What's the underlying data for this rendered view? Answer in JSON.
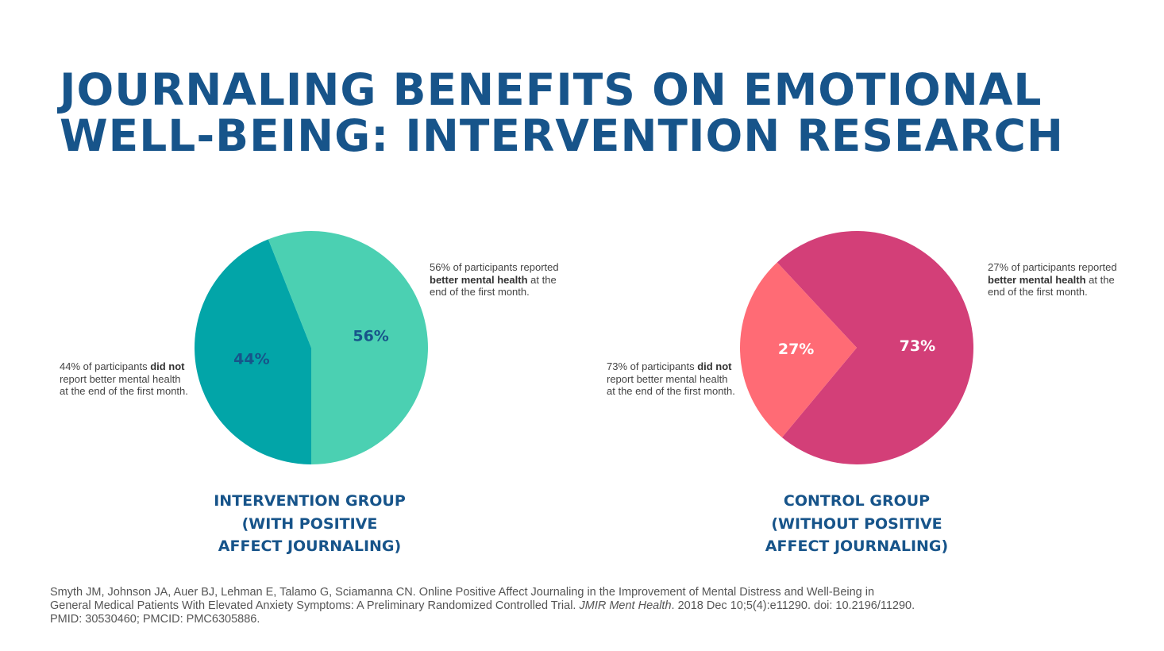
{
  "title": {
    "line1": "JOURNALING BENEFITS ON EMOTIONAL",
    "line2": "WELL-BEING: INTERVENTION RESEARCH"
  },
  "chart_data": [
    {
      "type": "pie",
      "categories": [
        "Did not report better mental health",
        "Reported better mental health"
      ],
      "values": [
        44,
        56
      ],
      "slice_labels": [
        "44%",
        "56%"
      ],
      "colors": [
        "#02a5a8",
        "#4bd0b2"
      ],
      "label_colors": [
        "#17548a",
        "#17548a"
      ],
      "title_lines": [
        "INTERVENTION GROUP",
        "(WITH POSITIVE",
        "AFFECT JOURNALING)"
      ],
      "annotations": {
        "positive": {
          "before": "56% of participants reported ",
          "bold": "better mental health",
          "after": " at the end of the first month."
        },
        "negative": {
          "before": "44% of participants ",
          "bold": "did not",
          "after": " report better mental health at the end of the first month."
        }
      }
    },
    {
      "type": "pie",
      "categories": [
        "Did not report better mental health",
        "Reported better mental health"
      ],
      "values": [
        73,
        27
      ],
      "slice_labels": [
        "73%",
        "27%"
      ],
      "colors": [
        "#d33f78",
        "#ff6b75"
      ],
      "label_colors": [
        "#ffffff",
        "#ffffff"
      ],
      "title_lines": [
        "CONTROL GROUP",
        "(WITHOUT POSITIVE",
        "AFFECT JOURNALING)"
      ],
      "annotations": {
        "positive": {
          "before": "27% of participants reported ",
          "bold": "better mental health",
          "after": " at the end of the first month."
        },
        "negative": {
          "before": "73% of participants ",
          "bold": "did not",
          "after": " report better mental health at the end of the first month."
        }
      }
    }
  ],
  "citation": {
    "line1": "Smyth JM, Johnson JA, Auer BJ, Lehman E, Talamo G, Sciamanna CN. Online Positive Affect Journaling in the Improvement of Mental Distress and Well-Being in",
    "line2_before": "General Medical Patients With Elevated Anxiety Symptoms: A Preliminary Randomized Controlled Trial. ",
    "line2_journal": "JMIR Ment Health",
    "line2_after": ". 2018 Dec 10;5(4):e11290. doi: 10.2196/11290.",
    "line3": "PMID: 30530460; PMCID: PMC6305886."
  }
}
